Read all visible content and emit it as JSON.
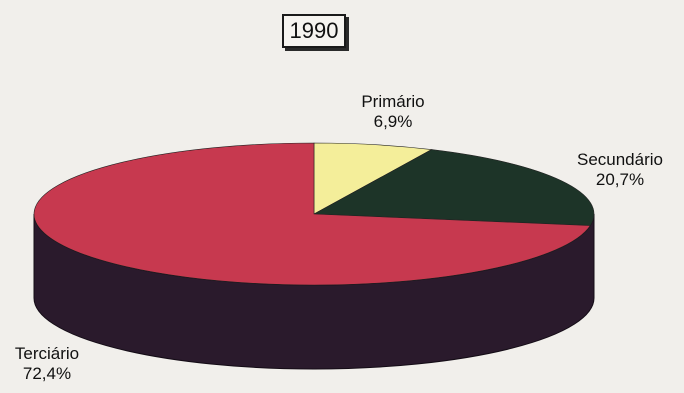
{
  "chart_data": {
    "type": "pie",
    "title": "1990",
    "slices": [
      {
        "label": "Primário",
        "value": 6.9,
        "value_label": "6,9%",
        "color": "#f4ee9a"
      },
      {
        "label": "Secundário",
        "value": 20.7,
        "value_label": "20,7%",
        "color": "#1d3428"
      },
      {
        "label": "Terciário",
        "value": 72.4,
        "value_label": "72,4%",
        "color": "#c7394f"
      }
    ],
    "side_color": "#2a1a2c",
    "three_d": true
  }
}
